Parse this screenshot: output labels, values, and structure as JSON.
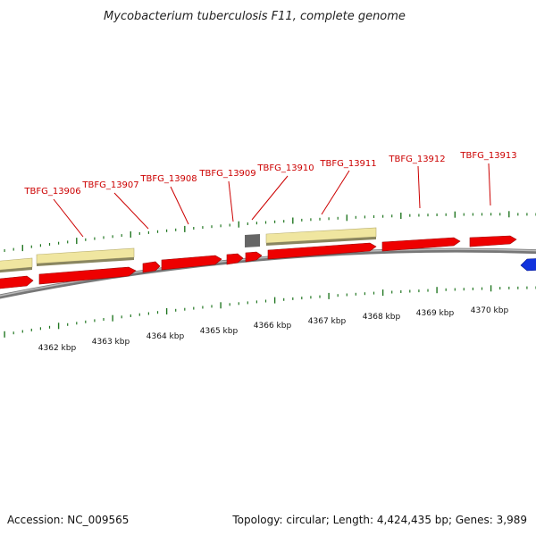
{
  "title": "Mycobacterium tuberculosis F11, complete genome",
  "footer": {
    "accession": "Accession: NC_009565",
    "summary": "Topology: circular; Length: 4,424,435 bp; Genes: 3,989"
  },
  "colors": {
    "cds": "#ee0000",
    "gene": "#f0e6a0",
    "misc": "#666666",
    "blue": "#1133dd",
    "backbone": "#888888",
    "tick": "#227722",
    "label": "#cc0000"
  },
  "scale_labels": [
    "4362 kbp",
    "4363 kbp",
    "4364 kbp",
    "4365 kbp",
    "4366 kbp",
    "4367 kbp",
    "4368 kbp",
    "4369 kbp",
    "4370 kbp"
  ],
  "gene_labels": [
    "TBFG_13906",
    "TBFG_13907",
    "TBFG_13908",
    "TBFG_13909",
    "TBFG_13910",
    "TBFG_13911",
    "TBFG_13912",
    "TBFG_13913"
  ]
}
